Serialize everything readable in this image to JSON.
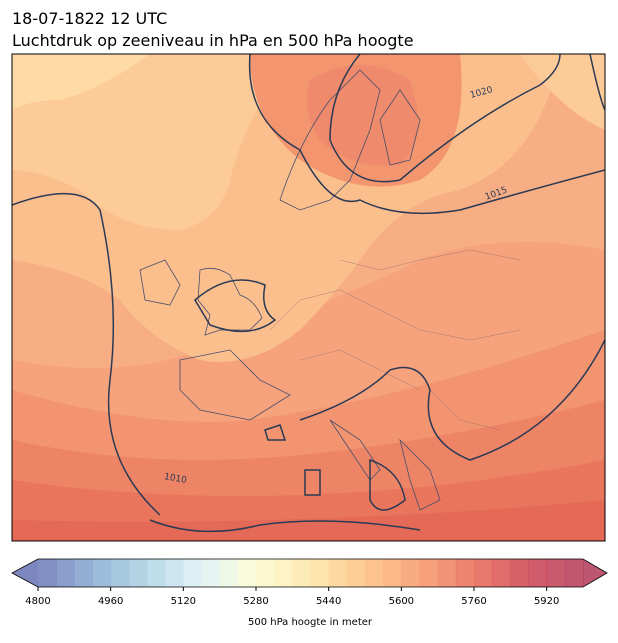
{
  "header": {
    "date": "18-07-1822 12 UTC",
    "title": "Luchtdruk op zeeniveau in hPa en 500 hPa hoogte"
  },
  "map": {
    "contour_labels": [
      "1020",
      "1015",
      "1010"
    ]
  },
  "colorbar": {
    "label": "500 hPa hoogte in meter",
    "lim": [
      4800,
      6000
    ],
    "interval": 40,
    "ticks": [
      4800,
      4960,
      5120,
      5280,
      5440,
      5600,
      5760,
      5920
    ],
    "colormap": [
      "#6672b4",
      "#86a9cf",
      "#acd2e5",
      "#def1f6",
      "#fcfcd0",
      "#fde5a3",
      "#fdbf80",
      "#f79768",
      "#e76853",
      "#cc404f",
      "#b13858"
    ]
  }
}
